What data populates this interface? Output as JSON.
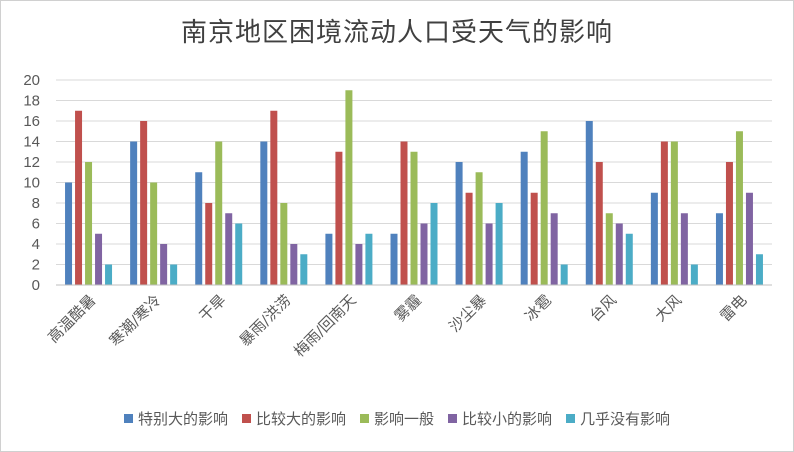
{
  "chart_data": {
    "type": "bar",
    "title": "南京地区困境流动人口受天气的影响",
    "categories": [
      "高温酷暑",
      "寒潮/寒冷",
      "干旱",
      "暴雨/洪涝",
      "梅雨/回南天",
      "雾霾",
      "沙尘暴",
      "冰雹",
      "台风",
      "大风",
      "雷电"
    ],
    "series": [
      {
        "name": "特别大的影响",
        "color": "#4f81bd",
        "values": [
          10,
          14,
          11,
          14,
          5,
          5,
          12,
          13,
          16,
          9,
          7
        ]
      },
      {
        "name": "比较大的影响",
        "color": "#c0504d",
        "values": [
          17,
          16,
          8,
          17,
          13,
          14,
          9,
          9,
          12,
          14,
          12
        ]
      },
      {
        "name": "影响一般",
        "color": "#9bbb59",
        "values": [
          12,
          10,
          14,
          8,
          19,
          13,
          11,
          15,
          7,
          14,
          15
        ]
      },
      {
        "name": "比较小的影响",
        "color": "#8064a2",
        "values": [
          5,
          4,
          7,
          4,
          4,
          6,
          6,
          7,
          6,
          7,
          9
        ]
      },
      {
        "name": "几乎没有影响",
        "color": "#4bacc6",
        "values": [
          2,
          2,
          6,
          3,
          5,
          8,
          8,
          2,
          5,
          2,
          3
        ]
      }
    ],
    "ylim": [
      0,
      20
    ],
    "yticks": [
      0,
      2,
      4,
      6,
      8,
      10,
      12,
      14,
      16,
      18,
      20
    ],
    "grid": true,
    "legend_position": "bottom"
  }
}
